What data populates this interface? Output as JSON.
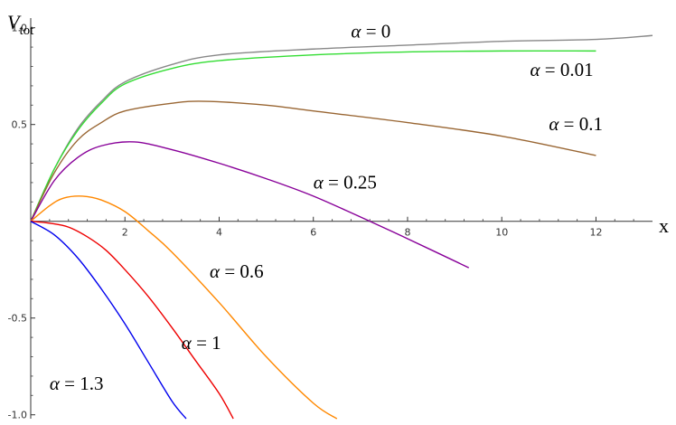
{
  "chart_data": {
    "type": "line",
    "title": "",
    "xlabel": "x",
    "ylabel": {
      "main": "V",
      "sub": "tot"
    },
    "xlim": [
      0,
      13.2
    ],
    "ylim": [
      -1.02,
      1.05
    ],
    "x_ticks": [
      2,
      4,
      6,
      8,
      10,
      12
    ],
    "y_ticks": [
      -1.0,
      -0.5,
      0.5,
      1.0
    ],
    "x_tick_labels": [
      "2",
      "4",
      "6",
      "8",
      "10",
      "12"
    ],
    "y_tick_labels": [
      "-1.0",
      "-0.5",
      "0.5",
      "1.0"
    ],
    "grid": false,
    "legend": "none",
    "series": [
      {
        "name": "α = 0",
        "label_text": "= 0",
        "color": "#888888",
        "points": [
          [
            0,
            0
          ],
          [
            0.5,
            0.27
          ],
          [
            1,
            0.48
          ],
          [
            1.5,
            0.62
          ],
          [
            2,
            0.72
          ],
          [
            3,
            0.81
          ],
          [
            4,
            0.86
          ],
          [
            6,
            0.89
          ],
          [
            8,
            0.91
          ],
          [
            10,
            0.93
          ],
          [
            12,
            0.94
          ],
          [
            13.2,
            0.96
          ]
        ]
      },
      {
        "name": "α = 0.01",
        "label_text": "= 0.01",
        "color": "#33dd33",
        "points": [
          [
            0,
            0
          ],
          [
            0.5,
            0.27
          ],
          [
            1,
            0.47
          ],
          [
            1.5,
            0.61
          ],
          [
            2,
            0.71
          ],
          [
            3,
            0.79
          ],
          [
            4,
            0.83
          ],
          [
            6,
            0.86
          ],
          [
            8,
            0.875
          ],
          [
            10,
            0.88
          ],
          [
            12,
            0.88
          ]
        ]
      },
      {
        "name": "α = 0.1",
        "label_text": "= 0.1",
        "color": "#996633",
        "points": [
          [
            0,
            0
          ],
          [
            0.5,
            0.25
          ],
          [
            1,
            0.42
          ],
          [
            1.5,
            0.51
          ],
          [
            2,
            0.57
          ],
          [
            3,
            0.61
          ],
          [
            3.7,
            0.62
          ],
          [
            5,
            0.6
          ],
          [
            6,
            0.57
          ],
          [
            8,
            0.51
          ],
          [
            10,
            0.44
          ],
          [
            12,
            0.34
          ]
        ]
      },
      {
        "name": "α = 0.25",
        "label_text": "= 0.25",
        "color": "#880099",
        "points": [
          [
            0,
            0
          ],
          [
            0.5,
            0.21
          ],
          [
            1,
            0.33
          ],
          [
            1.5,
            0.39
          ],
          [
            2.2,
            0.41
          ],
          [
            3,
            0.37
          ],
          [
            4,
            0.3
          ],
          [
            5,
            0.22
          ],
          [
            6,
            0.13
          ],
          [
            7.2,
            0
          ],
          [
            8,
            -0.09
          ],
          [
            9.3,
            -0.24
          ]
        ]
      },
      {
        "name": "α = 0.6",
        "label_text": "= 0.6",
        "color": "#ff8800",
        "points": [
          [
            0,
            0
          ],
          [
            0.4,
            0.08
          ],
          [
            0.7,
            0.12
          ],
          [
            1.1,
            0.13
          ],
          [
            1.5,
            0.11
          ],
          [
            2,
            0.05
          ],
          [
            2.5,
            -0.05
          ],
          [
            3,
            -0.16
          ],
          [
            4,
            -0.42
          ],
          [
            5,
            -0.7
          ],
          [
            6,
            -0.94
          ],
          [
            6.5,
            -1.02
          ]
        ]
      },
      {
        "name": "α = 1",
        "label_text": "= 1",
        "color": "#ee0000",
        "points": [
          [
            0,
            0
          ],
          [
            0.4,
            -0.01
          ],
          [
            0.8,
            -0.03
          ],
          [
            1.2,
            -0.08
          ],
          [
            1.6,
            -0.15
          ],
          [
            2,
            -0.25
          ],
          [
            2.5,
            -0.39
          ],
          [
            3,
            -0.55
          ],
          [
            3.5,
            -0.72
          ],
          [
            4,
            -0.89
          ],
          [
            4.3,
            -1.02
          ]
        ]
      },
      {
        "name": "α = 1.3",
        "label_text": "= 1.3",
        "color": "#0000ee",
        "points": [
          [
            0,
            0
          ],
          [
            0.5,
            -0.07
          ],
          [
            1,
            -0.19
          ],
          [
            1.5,
            -0.35
          ],
          [
            2,
            -0.53
          ],
          [
            2.5,
            -0.73
          ],
          [
            3,
            -0.93
          ],
          [
            3.3,
            -1.02
          ]
        ]
      }
    ],
    "annotations": [
      {
        "series_index": 0,
        "x": 6.8,
        "y": 0.95
      },
      {
        "series_index": 1,
        "x": 10.6,
        "y": 0.75
      },
      {
        "series_index": 2,
        "x": 11.0,
        "y": 0.47
      },
      {
        "series_index": 3,
        "x": 6.0,
        "y": 0.17
      },
      {
        "series_index": 4,
        "x": 3.8,
        "y": -0.29
      },
      {
        "series_index": 5,
        "x": 3.2,
        "y": -0.66
      },
      {
        "series_index": 6,
        "x": 0.4,
        "y": -0.87
      }
    ]
  }
}
